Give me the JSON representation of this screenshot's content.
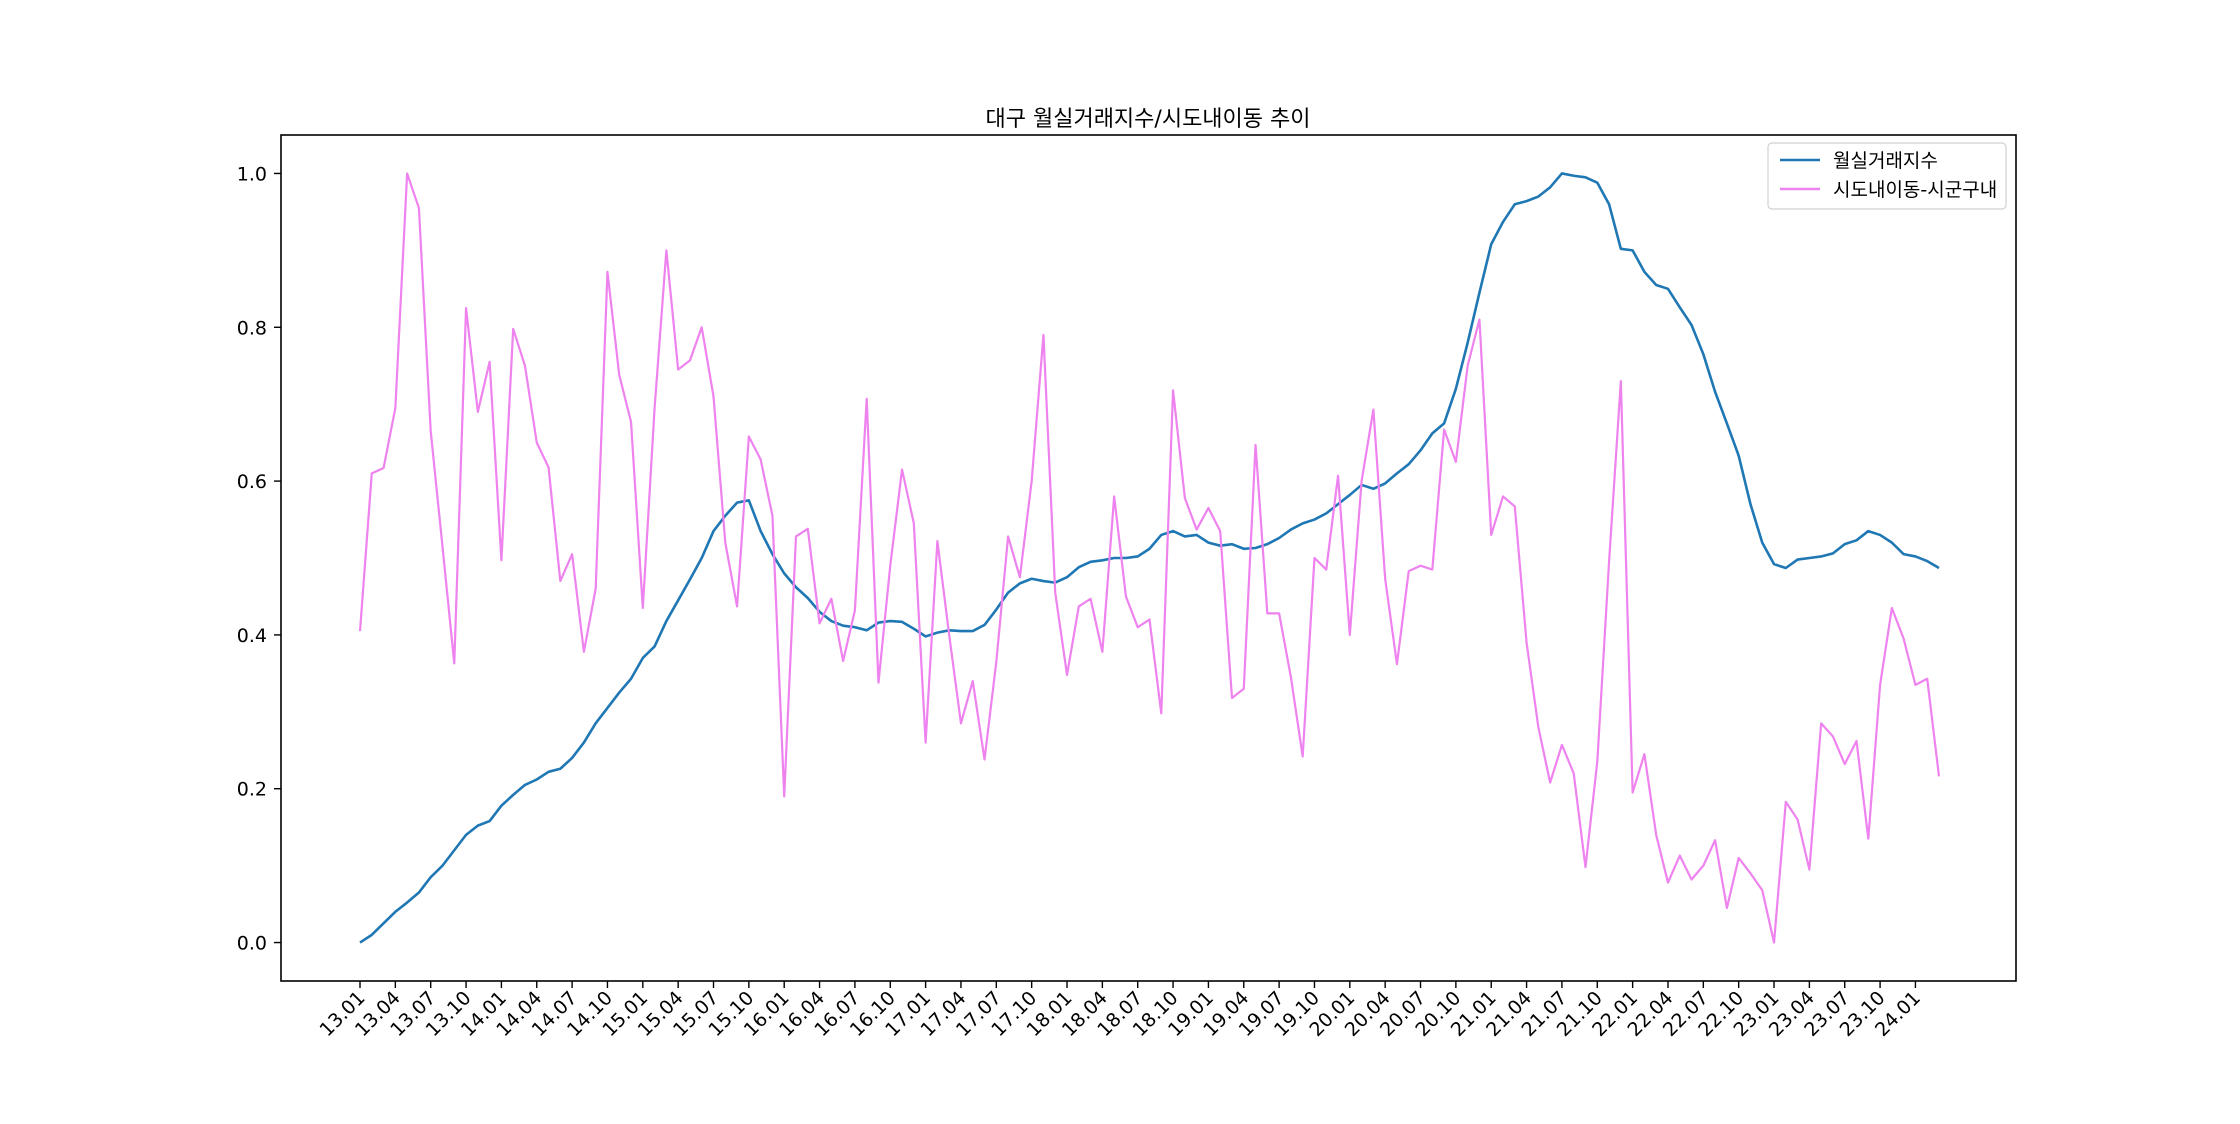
{
  "chart_data": {
    "type": "line",
    "title": "대구 월실거래지수/시도내이동 추이",
    "xlabel": "",
    "ylabel": "",
    "ylim": [
      -0.05,
      1.05
    ],
    "grid": false,
    "legend_position": "top-right",
    "yticks": [
      "0.0",
      "0.2",
      "0.4",
      "0.6",
      "0.8",
      "1.0"
    ],
    "categories": [
      "13.01",
      "13.02",
      "13.03",
      "13.04",
      "13.05",
      "13.06",
      "13.07",
      "13.08",
      "13.09",
      "13.10",
      "13.11",
      "13.12",
      "14.01",
      "14.02",
      "14.03",
      "14.04",
      "14.05",
      "14.06",
      "14.07",
      "14.08",
      "14.09",
      "14.10",
      "14.11",
      "14.12",
      "15.01",
      "15.02",
      "15.03",
      "15.04",
      "15.05",
      "15.06",
      "15.07",
      "15.08",
      "15.09",
      "15.10",
      "15.11",
      "15.12",
      "16.01",
      "16.02",
      "16.03",
      "16.04",
      "16.05",
      "16.06",
      "16.07",
      "16.08",
      "16.09",
      "16.10",
      "16.11",
      "16.12",
      "17.01",
      "17.02",
      "17.03",
      "17.04",
      "17.05",
      "17.06",
      "17.07",
      "17.08",
      "17.09",
      "17.10",
      "17.11",
      "17.12",
      "18.01",
      "18.02",
      "18.03",
      "18.04",
      "18.05",
      "18.06",
      "18.07",
      "18.08",
      "18.09",
      "18.10",
      "18.11",
      "18.12",
      "19.01",
      "19.02",
      "19.03",
      "19.04",
      "19.05",
      "19.06",
      "19.07",
      "19.08",
      "19.09",
      "19.10",
      "19.11",
      "19.12",
      "20.01",
      "20.02",
      "20.03",
      "20.04",
      "20.05",
      "20.06",
      "20.07",
      "20.08",
      "20.09",
      "20.10",
      "20.11",
      "20.12",
      "21.01",
      "21.02",
      "21.03",
      "21.04",
      "21.05",
      "21.06",
      "21.07",
      "21.08",
      "21.09",
      "21.10",
      "21.11",
      "21.12",
      "22.01",
      "22.02",
      "22.03",
      "22.04",
      "22.05",
      "22.06",
      "22.07",
      "22.08",
      "22.09",
      "22.10",
      "22.11",
      "22.12",
      "23.01",
      "23.02",
      "23.03",
      "23.04",
      "23.05",
      "23.06",
      "23.07",
      "23.08",
      "23.09",
      "23.10",
      "23.11",
      "23.12",
      "24.01",
      "24.02",
      "24.03"
    ],
    "xtick_labels": [
      "13.01",
      "13.04",
      "13.07",
      "13.10",
      "14.01",
      "14.04",
      "14.07",
      "14.10",
      "15.01",
      "15.04",
      "15.07",
      "15.10",
      "16.01",
      "16.04",
      "16.07",
      "16.10",
      "17.01",
      "17.04",
      "17.07",
      "17.10",
      "18.01",
      "18.04",
      "18.07",
      "18.10",
      "19.01",
      "19.04",
      "19.07",
      "19.10",
      "20.01",
      "20.04",
      "20.07",
      "20.10",
      "21.01",
      "21.04",
      "21.07",
      "21.10",
      "22.01",
      "22.04",
      "22.07",
      "22.10",
      "23.01",
      "23.04",
      "23.07",
      "23.10",
      "24.01"
    ],
    "series": [
      {
        "name": "월실거래지수",
        "color": "#1f77b4",
        "values": [
          0.0,
          0.01,
          0.025,
          0.04,
          0.052,
          0.065,
          0.085,
          0.1,
          0.12,
          0.14,
          0.152,
          0.158,
          0.178,
          0.192,
          0.205,
          0.212,
          0.222,
          0.226,
          0.24,
          0.26,
          0.285,
          0.305,
          0.325,
          0.343,
          0.37,
          0.385,
          0.418,
          0.445,
          0.472,
          0.5,
          0.535,
          0.555,
          0.572,
          0.575,
          0.535,
          0.505,
          0.48,
          0.462,
          0.448,
          0.43,
          0.418,
          0.412,
          0.41,
          0.406,
          0.416,
          0.418,
          0.417,
          0.408,
          0.398,
          0.403,
          0.406,
          0.405,
          0.405,
          0.413,
          0.433,
          0.455,
          0.467,
          0.473,
          0.47,
          0.468,
          0.475,
          0.488,
          0.495,
          0.497,
          0.5,
          0.5,
          0.502,
          0.512,
          0.53,
          0.535,
          0.528,
          0.53,
          0.52,
          0.516,
          0.518,
          0.512,
          0.513,
          0.518,
          0.526,
          0.537,
          0.545,
          0.55,
          0.558,
          0.57,
          0.582,
          0.595,
          0.59,
          0.597,
          0.61,
          0.622,
          0.64,
          0.662,
          0.675,
          0.72,
          0.78,
          0.845,
          0.908,
          0.937,
          0.96,
          0.964,
          0.97,
          0.982,
          1.0,
          0.997,
          0.995,
          0.988,
          0.96,
          0.902,
          0.9,
          0.872,
          0.855,
          0.85,
          0.826,
          0.803,
          0.765,
          0.716,
          0.675,
          0.633,
          0.57,
          0.52,
          0.492,
          0.487,
          0.498,
          0.5,
          0.502,
          0.506,
          0.518,
          0.523,
          0.535,
          0.53,
          0.52,
          0.505,
          0.502,
          0.496,
          0.487
        ]
      },
      {
        "name": "시도내이동-시군구내",
        "color": "#ee82ee",
        "values": [
          0.405,
          0.61,
          0.617,
          0.695,
          1.0,
          0.955,
          0.665,
          0.515,
          0.363,
          0.825,
          0.69,
          0.755,
          0.497,
          0.798,
          0.75,
          0.65,
          0.618,
          0.47,
          0.505,
          0.378,
          0.46,
          0.872,
          0.738,
          0.677,
          0.435,
          0.695,
          0.9,
          0.745,
          0.757,
          0.8,
          0.71,
          0.52,
          0.437,
          0.658,
          0.628,
          0.555,
          0.19,
          0.528,
          0.538,
          0.415,
          0.447,
          0.366,
          0.432,
          0.707,
          0.338,
          0.49,
          0.615,
          0.545,
          0.26,
          0.522,
          0.4,
          0.285,
          0.34,
          0.238,
          0.365,
          0.528,
          0.475,
          0.6,
          0.79,
          0.455,
          0.348,
          0.437,
          0.447,
          0.378,
          0.58,
          0.45,
          0.41,
          0.42,
          0.298,
          0.718,
          0.578,
          0.537,
          0.565,
          0.535,
          0.318,
          0.33,
          0.647,
          0.428,
          0.428,
          0.345,
          0.242,
          0.5,
          0.485,
          0.607,
          0.4,
          0.6,
          0.693,
          0.473,
          0.362,
          0.483,
          0.49,
          0.485,
          0.667,
          0.625,
          0.75,
          0.81,
          0.53,
          0.58,
          0.567,
          0.39,
          0.28,
          0.208,
          0.257,
          0.22,
          0.098,
          0.235,
          0.495,
          0.73,
          0.195,
          0.245,
          0.14,
          0.078,
          0.113,
          0.082,
          0.1,
          0.133,
          0.045,
          0.11,
          0.09,
          0.068,
          0.0,
          0.183,
          0.16,
          0.095,
          0.285,
          0.268,
          0.232,
          0.262,
          0.135,
          0.335,
          0.435,
          0.395,
          0.335,
          0.343,
          0.216
        ]
      }
    ]
  }
}
